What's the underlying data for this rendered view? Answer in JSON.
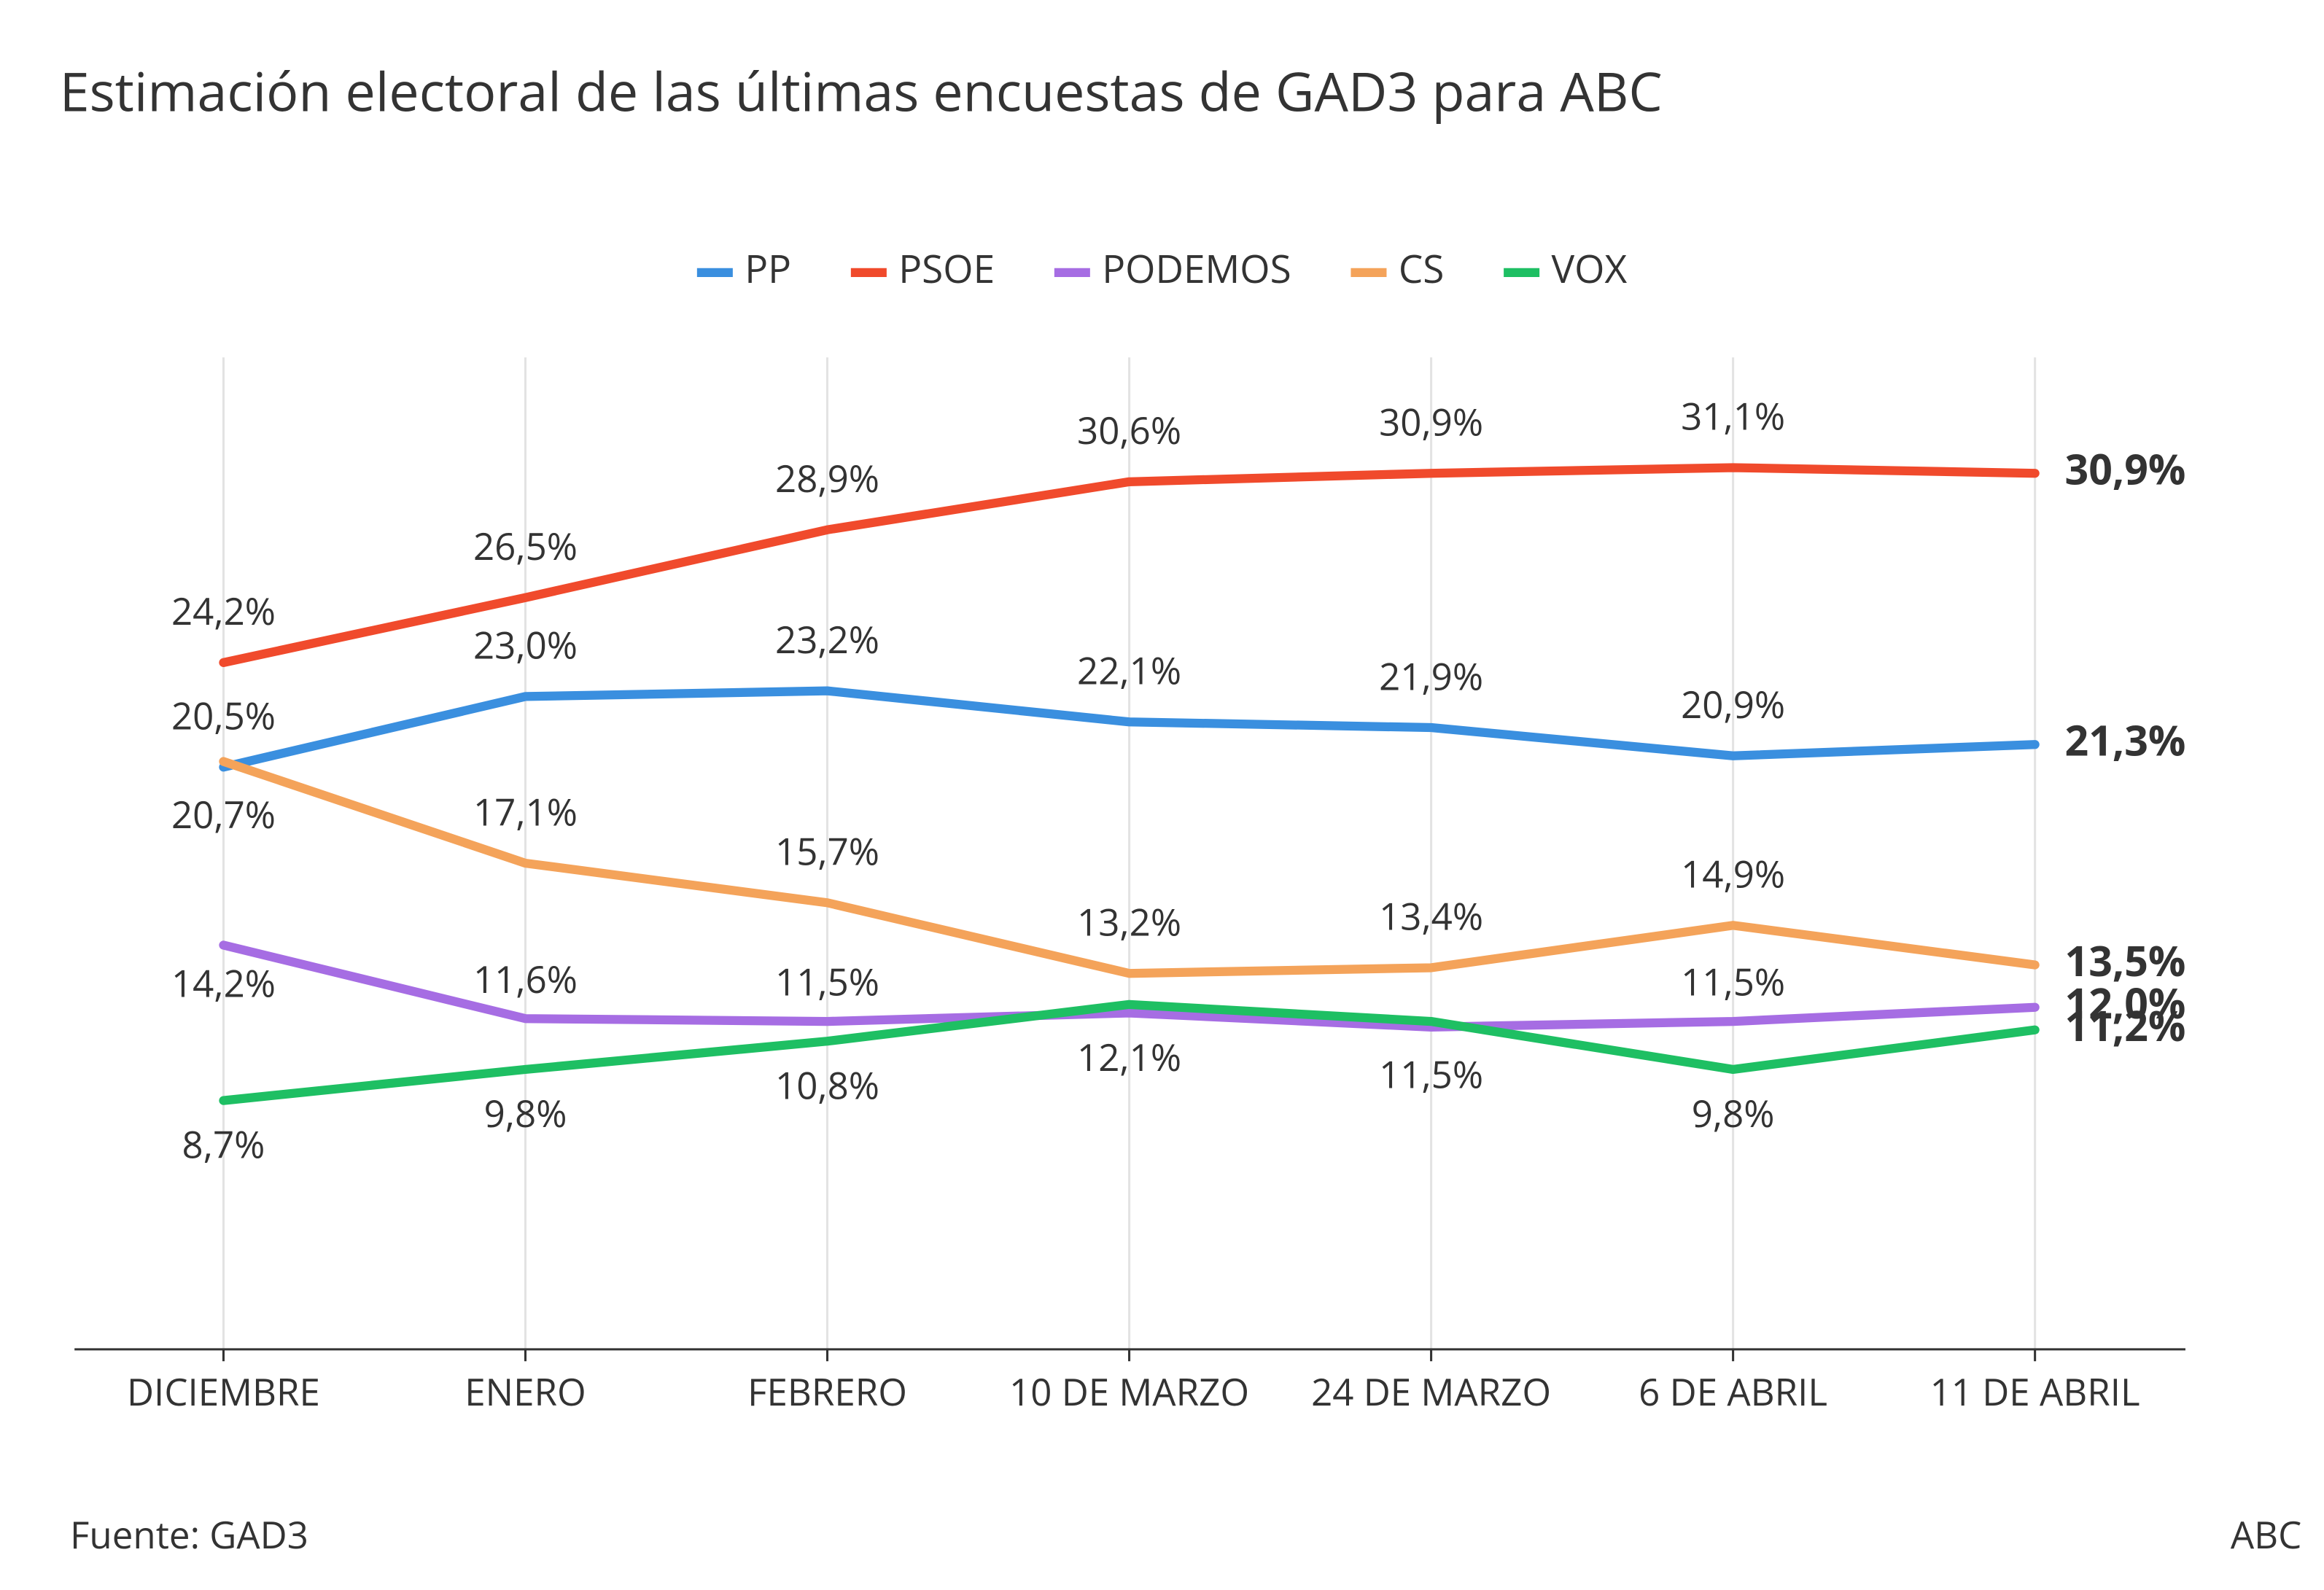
{
  "chart_data": {
    "type": "line",
    "title": "Estimación electoral de las últimas encuestas de GAD3 para ABC",
    "source": "Fuente: GAD3",
    "credit": "ABC",
    "categories": [
      "DICIEMBRE",
      "ENERO",
      "FEBRERO",
      "10 DE MARZO",
      "24 DE MARZO",
      "6 DE ABRIL",
      "11 DE ABRIL"
    ],
    "ylim": [
      0,
      35
    ],
    "grid": true,
    "legend": "top",
    "series": [
      {
        "name": "PP",
        "color": "#3a8fdf",
        "values": [
          20.5,
          23.0,
          23.2,
          22.1,
          21.9,
          20.9,
          21.3
        ],
        "value_labels": [
          "20,5%",
          "23,0%",
          "23,2%",
          "22,1%",
          "21,9%",
          "20,9%",
          "21,3%"
        ]
      },
      {
        "name": "PSOE",
        "color": "#f04a2c",
        "values": [
          24.2,
          26.5,
          28.9,
          30.6,
          30.9,
          31.1,
          30.9
        ],
        "value_labels": [
          "24,2%",
          "26,5%",
          "28,9%",
          "30,6%",
          "30,9%",
          "31,1%",
          "30,9%"
        ]
      },
      {
        "name": "PODEMOS",
        "color": "#a66de3",
        "values": [
          14.2,
          11.6,
          11.5,
          11.8,
          11.3,
          11.5,
          12.0
        ],
        "value_labels": [
          "14,2%",
          "11,6%",
          "11,5%",
          null,
          null,
          "11,5%",
          "12,0%"
        ]
      },
      {
        "name": "CS",
        "color": "#f4a35a",
        "values": [
          20.7,
          17.1,
          15.7,
          13.2,
          13.4,
          14.9,
          13.5
        ],
        "value_labels": [
          "20,7%",
          "17,1%",
          "15,7%",
          "13,2%",
          "13,4%",
          "14,9%",
          "13,5%"
        ]
      },
      {
        "name": "VOX",
        "color": "#1ebf63",
        "values": [
          8.7,
          9.8,
          10.8,
          12.1,
          11.5,
          9.8,
          11.2
        ],
        "value_labels": [
          "8,7%",
          "9,8%",
          "10,8%",
          "12,1%",
          "11,5%",
          "9,8%",
          "11,2%"
        ]
      }
    ]
  }
}
